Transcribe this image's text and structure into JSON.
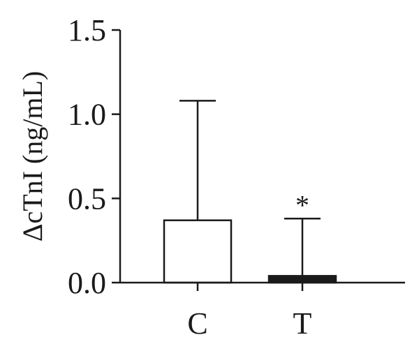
{
  "chart_data": {
    "type": "bar",
    "categories": [
      "C",
      "T"
    ],
    "values": [
      0.37,
      0.04
    ],
    "errors": [
      0.71,
      0.34
    ],
    "bar_colors": [
      "#ffffff",
      "#1a1a1a"
    ],
    "ylabel": "ΔcTnI (ng/mL)",
    "ylim": [
      0,
      1.5
    ],
    "yticks": [
      0.0,
      0.5,
      1.0,
      1.5
    ],
    "ytick_labels": [
      "0.0",
      "0.5",
      "1.0",
      "1.5"
    ],
    "annotations": [
      {
        "category": "T",
        "text": "*"
      }
    ]
  }
}
